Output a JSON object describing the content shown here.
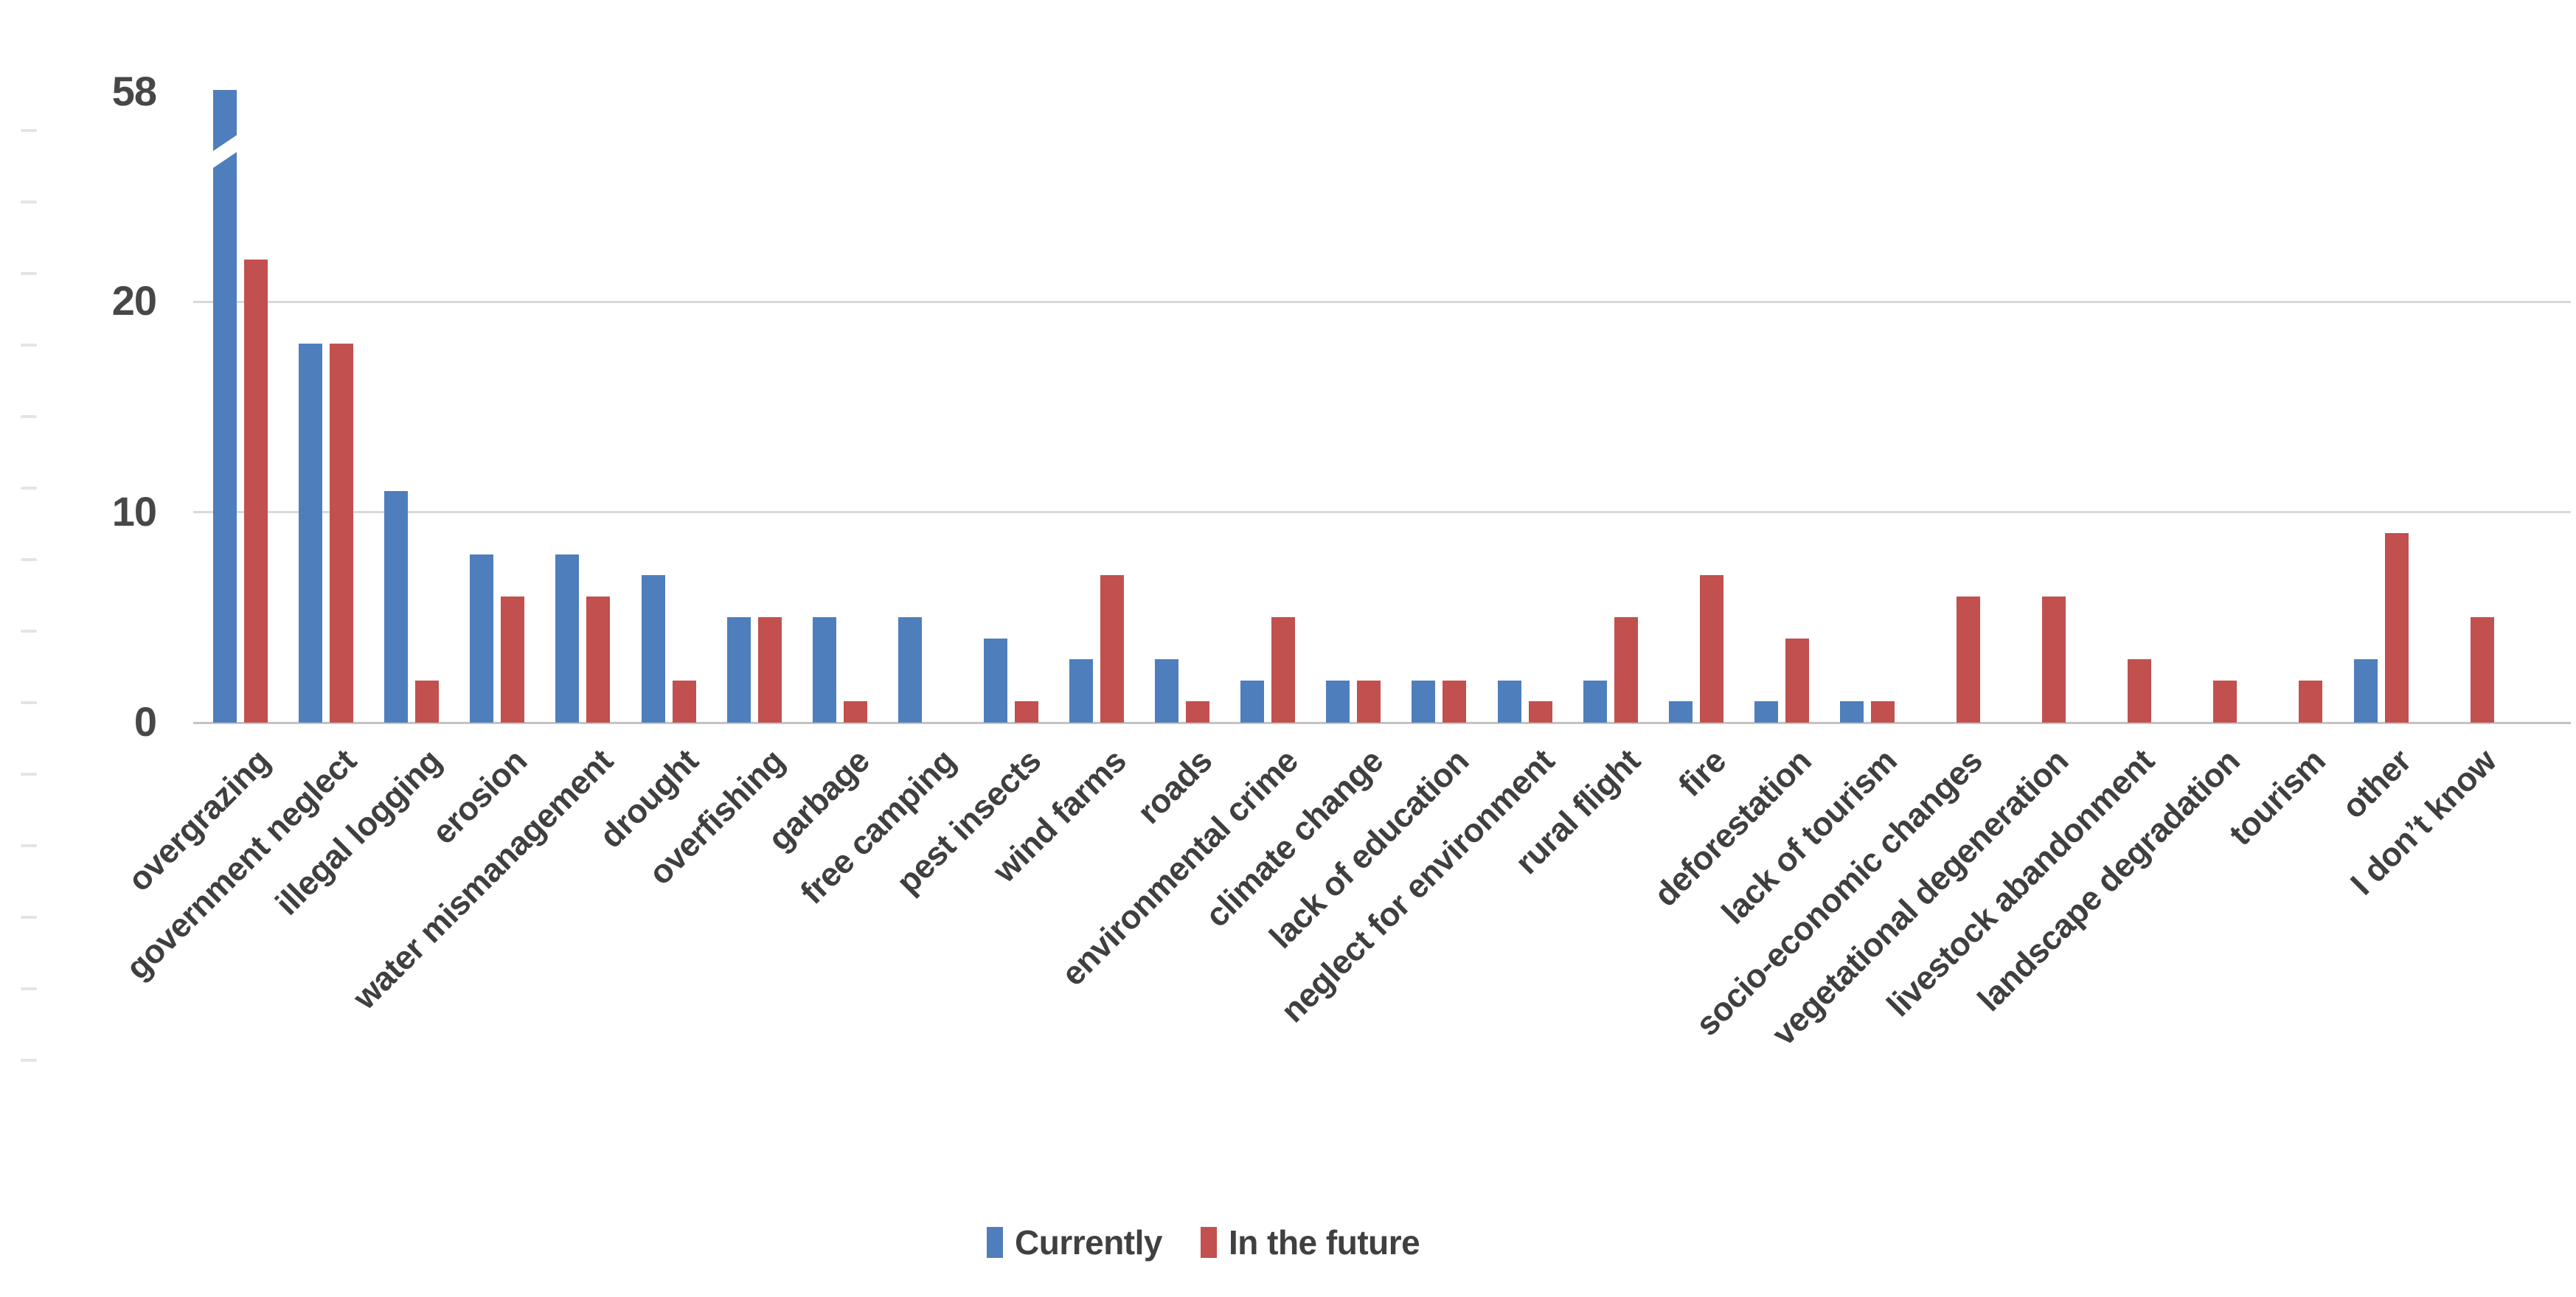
{
  "chart_data": {
    "type": "bar",
    "title": "",
    "xlabel": "",
    "ylabel": "",
    "categories": [
      "overgrazing",
      "government neglect",
      "illegal logging",
      "erosion",
      "water mismanagement",
      "drought",
      "overfishing",
      "garbage",
      "free camping",
      "pest insects",
      "wind farms",
      "roads",
      "environmental crime",
      "climate change",
      "lack of education",
      "neglect for environment",
      "rural flight",
      "fire",
      "deforestation",
      "lack of tourism",
      "socio-economic changes",
      "vegetational degeneration",
      "livestock abandonment",
      "landscape degradation",
      "tourism",
      "other",
      "I don’t know"
    ],
    "series": [
      {
        "name": "Currently",
        "color": "#4e7fbc",
        "values": [
          58,
          18,
          11,
          8,
          8,
          7,
          5,
          5,
          5,
          4,
          3,
          3,
          2,
          2,
          2,
          2,
          2,
          1,
          1,
          1,
          0,
          0,
          0,
          0,
          0,
          3,
          0
        ]
      },
      {
        "name": "In the future",
        "color": "#c2504e",
        "values": [
          22,
          18,
          2,
          6,
          6,
          2,
          5,
          1,
          0,
          1,
          7,
          1,
          5,
          2,
          2,
          1,
          5,
          7,
          4,
          1,
          6,
          6,
          3,
          2,
          2,
          9,
          5
        ]
      }
    ],
    "y_axis": {
      "ticks": [
        0,
        10,
        20
      ],
      "top_label": "58",
      "ylim_shown": [
        0,
        23
      ]
    },
    "axis_break": {
      "category": "overgrazing",
      "series": "Currently",
      "value_shown": 58
    },
    "legend": {
      "position": "bottom",
      "items": [
        "Currently",
        "In the future"
      ]
    },
    "grid": "horizontal"
  },
  "colors": {
    "grid": "#d9d9d9",
    "baseline": "#c3c3c3",
    "text": "#3f3f3f"
  }
}
